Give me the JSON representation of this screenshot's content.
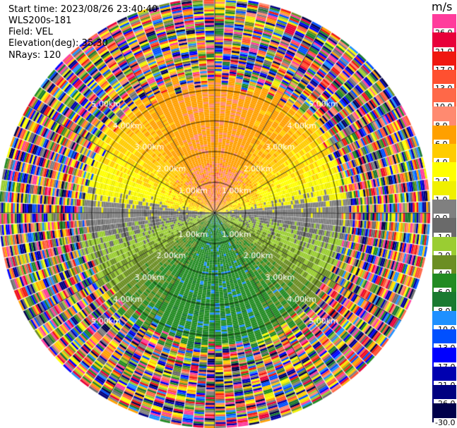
{
  "header": {
    "start_time": "Start time: 2023/08/26 23:40:40",
    "instrument": "WLS200s-181",
    "field": "Field: VEL",
    "elevation": "Elevation(deg): 35.30",
    "nrays": "NRays: 120"
  },
  "colorbar": {
    "unit": "m/s",
    "entries": [
      {
        "label": "26.0",
        "color": "#ff3c9c"
      },
      {
        "label": "21.0",
        "color": "#e8003a"
      },
      {
        "label": "17.0",
        "color": "#f01810"
      },
      {
        "label": "13.0",
        "color": "#ff5030"
      },
      {
        "label": "10.0",
        "color": "#ff6848"
      },
      {
        "label": "8.0",
        "color": "#ff8a70"
      },
      {
        "label": "6.0",
        "color": "#ffa000"
      },
      {
        "label": "4.0",
        "color": "#ffcc00"
      },
      {
        "label": "2.0",
        "color": "#ffff00"
      },
      {
        "label": "1.0",
        "color": "#f0f000"
      },
      {
        "label": "0.0",
        "color": "#808080"
      },
      {
        "label": "-1.0",
        "color": "#6a6a6a"
      },
      {
        "label": "-2.0",
        "color": "#9acd32"
      },
      {
        "label": "-4.0",
        "color": "#6b8e23"
      },
      {
        "label": "-6.0",
        "color": "#228b22"
      },
      {
        "label": "-8.0",
        "color": "#1a7a30"
      },
      {
        "label": "-10.0",
        "color": "#1e90ff"
      },
      {
        "label": "-13.0",
        "color": "#0050ff"
      },
      {
        "label": "-17.0",
        "color": "#0000ff"
      },
      {
        "label": "-21.0",
        "color": "#0000b0"
      },
      {
        "label": "-26.0",
        "color": "#000080"
      },
      {
        "label": "-30.0",
        "color": "#00004a"
      }
    ]
  },
  "chart_data": {
    "type": "heatmap",
    "projection": "polar PPI",
    "field": "VEL",
    "unit": "m/s",
    "nrays": 120,
    "elevation_deg": 35.3,
    "range_ring_labels": [
      "1.00km",
      "2.00km",
      "3.00km",
      "4.00km",
      "5.00km"
    ],
    "range_rings_km": [
      1,
      2,
      3,
      4,
      5
    ],
    "max_range_km": 7,
    "spoke_angles_deg": [
      0,
      30,
      60,
      90,
      120,
      150,
      180,
      210,
      240,
      270,
      300,
      330
    ],
    "pattern_summary": "positive velocities (orange/yellow, about 2 to 8 m/s) to the north; negative velocities (green, about -2 to -8 m/s, with blue patches near -10 m/s) to the south; grey near 0 m/s along the east-west line; noisy multicolor speckle beyond about 4.5 km"
  }
}
